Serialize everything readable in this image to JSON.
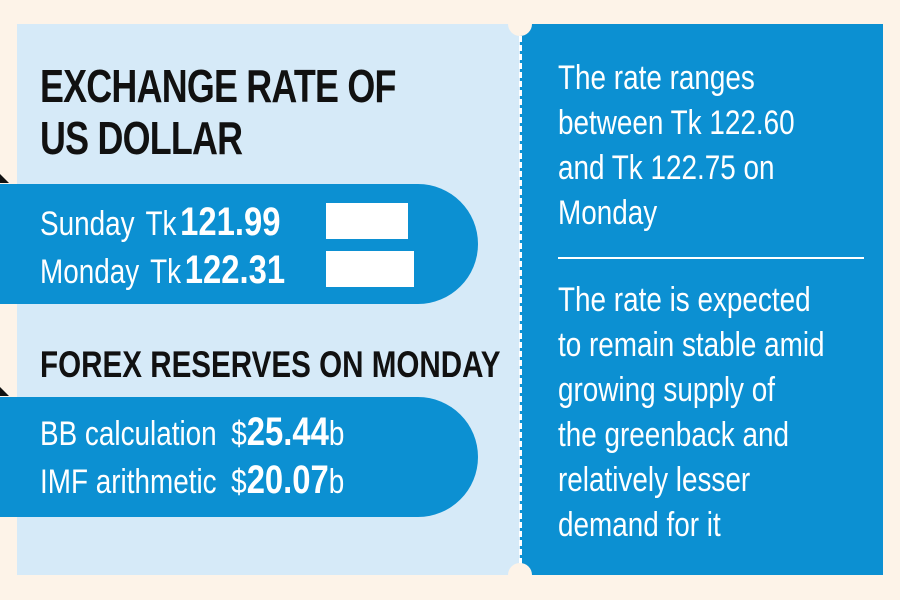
{
  "exchange": {
    "title_line1": "EXCHANGE RATE OF",
    "title_line2": "US DOLLAR",
    "rows": [
      {
        "day": "Sunday",
        "currency": "Tk",
        "value": "121.99"
      },
      {
        "day": "Monday",
        "currency": "Tk",
        "value": "122.31"
      }
    ]
  },
  "forex": {
    "heading": "FOREX RESERVES ON MONDAY",
    "rows": [
      {
        "label": "BB calculation",
        "prefix": "$",
        "value": "25.44",
        "suffix": "b"
      },
      {
        "label": "IMF arithmetic",
        "prefix": "$",
        "value": "20.07",
        "suffix": "b"
      }
    ]
  },
  "notes": {
    "note1": "The rate ranges\nbetween Tk 122.60\nand Tk 122.75 on\nMonday",
    "note2": "The rate is expected\nto remain stable amid\ngrowing supply of\nthe greenback and\nrelatively lesser\ndemand for it"
  },
  "colors": {
    "accent_blue": "#0c90d2",
    "light_blue": "#d6eaf8",
    "background": "#fdf3e8",
    "text_dark": "#111111"
  }
}
